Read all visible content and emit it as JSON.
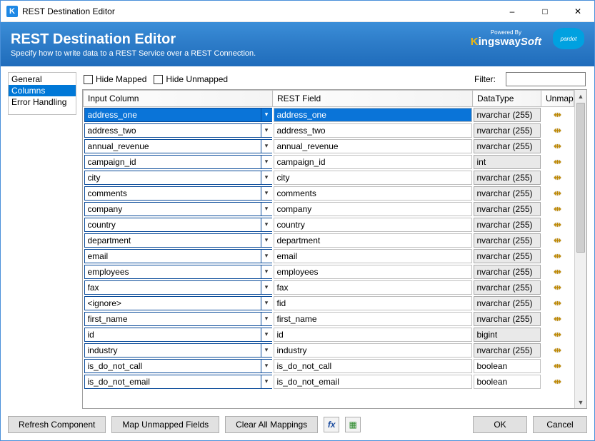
{
  "window": {
    "title": "REST Destination Editor"
  },
  "banner": {
    "heading": "REST Destination Editor",
    "subheading": "Specify how to write data to a REST Service over a REST Connection.",
    "powered_label": "Powered By",
    "brand_k_letter": "K",
    "brand_rest": "ingsway",
    "brand_soft": "Soft",
    "sf_label": "pardot"
  },
  "sidebar": {
    "items": [
      {
        "label": "General"
      },
      {
        "label": "Columns"
      },
      {
        "label": "Error Handling"
      }
    ],
    "selected_index": 1
  },
  "toolbar": {
    "hide_mapped": "Hide Mapped",
    "hide_unmapped": "Hide Unmapped",
    "filter_label": "Filter:",
    "filter_value": ""
  },
  "grid": {
    "headers": {
      "input": "Input Column",
      "rest": "REST Field",
      "type": "DataType",
      "unmap": "Unmap"
    },
    "selected_row": 0,
    "rows": [
      {
        "input": "address_one",
        "rest": "address_one",
        "type": "nvarchar (255)",
        "type_boxed": true
      },
      {
        "input": "address_two",
        "rest": "address_two",
        "type": "nvarchar (255)",
        "type_boxed": true
      },
      {
        "input": "annual_revenue",
        "rest": "annual_revenue",
        "type": "nvarchar (255)",
        "type_boxed": true
      },
      {
        "input": "campaign_id",
        "rest": "campaign_id",
        "type": "int",
        "type_boxed": true
      },
      {
        "input": "city",
        "rest": "city",
        "type": "nvarchar (255)",
        "type_boxed": true
      },
      {
        "input": "comments",
        "rest": "comments",
        "type": "nvarchar (255)",
        "type_boxed": true
      },
      {
        "input": "company",
        "rest": "company",
        "type": "nvarchar (255)",
        "type_boxed": true
      },
      {
        "input": "country",
        "rest": "country",
        "type": "nvarchar (255)",
        "type_boxed": true
      },
      {
        "input": "department",
        "rest": "department",
        "type": "nvarchar (255)",
        "type_boxed": true
      },
      {
        "input": "email",
        "rest": "email",
        "type": "nvarchar (255)",
        "type_boxed": true
      },
      {
        "input": "employees",
        "rest": "employees",
        "type": "nvarchar (255)",
        "type_boxed": true
      },
      {
        "input": "fax",
        "rest": "fax",
        "type": "nvarchar (255)",
        "type_boxed": true
      },
      {
        "input": "<ignore>",
        "rest": "fid",
        "type": "nvarchar (255)",
        "type_boxed": true
      },
      {
        "input": "first_name",
        "rest": "first_name",
        "type": "nvarchar (255)",
        "type_boxed": true
      },
      {
        "input": "id",
        "rest": "id",
        "type": "bigint",
        "type_boxed": true
      },
      {
        "input": "industry",
        "rest": "industry",
        "type": "nvarchar (255)",
        "type_boxed": true
      },
      {
        "input": "is_do_not_call",
        "rest": "is_do_not_call",
        "type": "boolean",
        "type_boxed": false
      },
      {
        "input": "is_do_not_email",
        "rest": "is_do_not_email",
        "type": "boolean",
        "type_boxed": false
      }
    ]
  },
  "footer": {
    "refresh": "Refresh Component",
    "map_unmapped": "Map Unmapped Fields",
    "clear_all": "Clear All Mappings",
    "ok": "OK",
    "cancel": "Cancel"
  },
  "colors": {
    "selection_bg": "#0a74d8",
    "input_border": "#0a4b9a",
    "banner_top": "#3b8ed8",
    "banner_bottom": "#1f6cbb"
  }
}
